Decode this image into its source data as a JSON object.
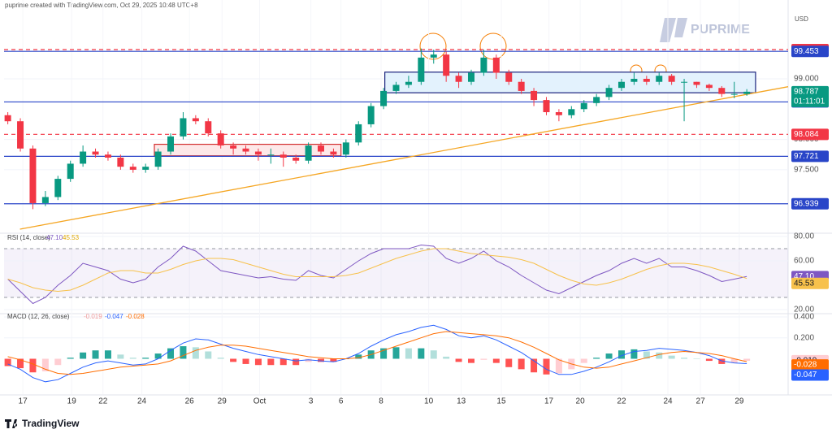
{
  "chart_data": [
    {
      "type": "candlestick",
      "title": "puprime created with TradingView.com, Oct 29, 2025 10:48 UTC+8",
      "currency": "USD",
      "watermark": "PUPRIME",
      "footer": "TradingView",
      "countdown": "01:11:01",
      "xlim": [
        -0.3,
        62.3
      ],
      "xticks": [
        {
          "value": 1.2,
          "label": "17"
        },
        {
          "value": 5.1,
          "label": "19"
        },
        {
          "value": 7.6,
          "label": "22"
        },
        {
          "value": 10.7,
          "label": "24"
        },
        {
          "value": 14.5,
          "label": "26"
        },
        {
          "value": 17.1,
          "label": "29"
        },
        {
          "value": 20.1,
          "label": "Oct"
        },
        {
          "value": 24.2,
          "label": "3"
        },
        {
          "value": 26.6,
          "label": "6"
        },
        {
          "value": 29.8,
          "label": "8"
        },
        {
          "value": 33.6,
          "label": "10"
        },
        {
          "value": 36.2,
          "label": "13"
        },
        {
          "value": 39.4,
          "label": "15"
        },
        {
          "value": 43.2,
          "label": "17"
        },
        {
          "value": 45.7,
          "label": "20"
        },
        {
          "value": 49.0,
          "label": "22"
        },
        {
          "value": 52.7,
          "label": "24"
        },
        {
          "value": 55.3,
          "label": "27"
        },
        {
          "value": 58.4,
          "label": "29"
        }
      ],
      "ylim": [
        96.48,
        100.3
      ],
      "yticks": [
        {
          "value": 97.5,
          "label": "97.500"
        },
        {
          "value": 98.0,
          "label": "98.000"
        },
        {
          "value": 99.0,
          "label": "99.000"
        }
      ],
      "up_color": "#089981",
      "down_color": "#f23645",
      "open": [
        98.4,
        98.3,
        97.85,
        96.95,
        97.05,
        97.35,
        97.6,
        97.8,
        97.75,
        97.7,
        97.55,
        97.5,
        97.55,
        97.8,
        98.05,
        98.35,
        98.3,
        98.1,
        97.9,
        97.85,
        97.8,
        97.75,
        97.75,
        97.7,
        97.65,
        97.9,
        97.8,
        97.75,
        97.95,
        98.25,
        98.55,
        98.8,
        98.9,
        98.95,
        99.35,
        99.4,
        99.05,
        98.95,
        99.1,
        99.35,
        99.1,
        98.95,
        98.8,
        98.65,
        98.45,
        98.4,
        98.5,
        98.6,
        98.7,
        98.85,
        98.95,
        99.0,
        98.95,
        99.05,
        98.95,
        98.95,
        98.9,
        98.85,
        98.75,
        98.75
      ],
      "high": [
        98.45,
        98.35,
        97.9,
        97.15,
        97.4,
        97.65,
        97.9,
        97.85,
        97.8,
        97.75,
        97.6,
        97.6,
        97.85,
        98.1,
        98.45,
        98.4,
        98.35,
        98.15,
        97.95,
        97.9,
        97.85,
        97.85,
        97.8,
        97.75,
        97.95,
        97.95,
        97.85,
        98.0,
        98.3,
        98.6,
        98.85,
        98.95,
        99.05,
        99.5,
        99.48,
        99.45,
        99.1,
        99.15,
        99.48,
        99.4,
        99.15,
        99.0,
        98.85,
        98.7,
        98.5,
        98.55,
        98.65,
        98.75,
        98.9,
        99.0,
        99.1,
        99.05,
        99.1,
        99.08,
        99.0,
        98.95,
        98.92,
        98.88,
        98.95,
        98.83
      ],
      "low": [
        98.25,
        97.8,
        96.85,
        96.9,
        97.0,
        97.3,
        97.55,
        97.7,
        97.65,
        97.5,
        97.45,
        97.45,
        97.5,
        97.75,
        98.0,
        98.25,
        98.05,
        97.85,
        97.75,
        97.75,
        97.65,
        97.6,
        97.55,
        97.6,
        97.6,
        97.75,
        97.7,
        97.7,
        97.9,
        98.2,
        98.5,
        98.75,
        98.85,
        98.9,
        99.25,
        98.95,
        98.85,
        98.9,
        99.05,
        99.0,
        98.9,
        98.75,
        98.55,
        98.4,
        98.3,
        98.35,
        98.45,
        98.55,
        98.65,
        98.8,
        98.9,
        98.9,
        98.9,
        98.9,
        98.3,
        98.85,
        98.8,
        98.7,
        98.68,
        98.72
      ],
      "close": [
        98.3,
        97.85,
        96.95,
        97.05,
        97.35,
        97.6,
        97.8,
        97.75,
        97.7,
        97.55,
        97.5,
        97.55,
        97.8,
        98.05,
        98.35,
        98.3,
        98.1,
        97.9,
        97.85,
        97.8,
        97.75,
        97.75,
        97.7,
        97.65,
        97.9,
        97.8,
        97.75,
        97.95,
        98.25,
        98.55,
        98.8,
        98.9,
        98.95,
        99.35,
        99.4,
        99.05,
        98.95,
        99.1,
        99.35,
        99.1,
        98.95,
        98.8,
        98.65,
        98.45,
        98.4,
        98.5,
        98.6,
        98.7,
        98.85,
        98.95,
        99.0,
        98.95,
        99.05,
        98.95,
        98.95,
        98.9,
        98.85,
        98.75,
        98.75,
        98.787
      ],
      "levels": [
        {
          "value": 99.482,
          "color": "#f23645",
          "style": "dashed"
        },
        {
          "value": 99.453,
          "color": "#2945c8",
          "style": "solid"
        },
        {
          "value": 98.619,
          "color": "#2945c8",
          "style": "solid"
        },
        {
          "value": 98.084,
          "color": "#f23645",
          "style": "dashed"
        },
        {
          "value": 97.721,
          "color": "#2945c8",
          "style": "solid"
        },
        {
          "value": 96.939,
          "color": "#2945c8",
          "style": "solid"
        }
      ],
      "boxes": [
        {
          "x": [
            30.1,
            59.7
          ],
          "y": [
            98.77,
            99.11
          ],
          "color": "#1a237e",
          "fill": "#e3f2fd"
        },
        {
          "x": [
            11.7,
            26.6
          ],
          "y": [
            97.73,
            97.92
          ],
          "color": "#d32f2f",
          "fill": "#fde8e8"
        }
      ],
      "trendline": {
        "x": [
          0.97,
          62.3
        ],
        "y": [
          96.52,
          98.87
        ],
        "color": "#f5a623"
      }
    },
    {
      "type": "line",
      "title": "RSI (14, close)",
      "ylim": [
        17.33,
        80.67
      ],
      "yticks": [
        {
          "value": 20,
          "label": "20.00"
        },
        {
          "value": 60,
          "label": "60.00"
        },
        {
          "value": 80,
          "label": "80.00"
        }
      ],
      "band": [
        30,
        70
      ],
      "series": [
        {
          "color": "#7e57c2",
          "last_label": "47.10",
          "values": [
            45,
            35,
            25,
            30,
            40,
            48,
            58,
            55,
            52,
            45,
            42,
            45,
            55,
            62,
            72,
            68,
            60,
            52,
            50,
            48,
            46,
            47,
            45,
            44,
            52,
            48,
            46,
            53,
            60,
            66,
            70,
            70,
            70,
            73,
            72,
            62,
            58,
            62,
            68,
            60,
            55,
            48,
            42,
            36,
            33,
            38,
            43,
            48,
            52,
            58,
            62,
            58,
            62,
            55,
            55,
            52,
            48,
            43,
            45,
            47.1
          ]
        },
        {
          "color": "#f7c14b",
          "values": [
            45,
            42,
            38,
            36,
            35,
            36,
            40,
            45,
            50,
            52,
            52,
            50,
            50,
            53,
            57,
            60,
            62,
            62,
            61,
            58,
            55,
            52,
            49,
            47,
            47,
            47,
            47,
            48,
            50,
            54,
            58,
            62,
            65,
            68,
            70,
            70,
            68,
            66,
            65,
            64,
            63,
            61,
            58,
            53,
            48,
            44,
            41,
            40,
            42,
            45,
            49,
            53,
            56,
            58,
            58,
            57,
            55,
            52,
            49,
            45.53
          ]
        }
      ]
    },
    {
      "type": "macd",
      "title": "MACD (12, 26, close)",
      "ylim": [
        -0.338,
        0.431
      ],
      "yticks": [
        {
          "value": 0.2,
          "label": "0.200"
        },
        {
          "value": 0.4,
          "label": "0.400"
        }
      ],
      "histogram": [
        -0.07,
        -0.09,
        -0.13,
        -0.12,
        -0.06,
        0.01,
        0.06,
        0.08,
        0.08,
        0.04,
        0.01,
        0.01,
        0.05,
        0.1,
        0.12,
        0.11,
        0.07,
        0.01,
        -0.03,
        -0.05,
        -0.06,
        -0.06,
        -0.06,
        -0.06,
        -0.03,
        -0.03,
        -0.03,
        0.0,
        0.04,
        0.08,
        0.1,
        0.11,
        0.1,
        0.1,
        0.08,
        0.02,
        -0.03,
        -0.04,
        -0.01,
        -0.04,
        -0.08,
        -0.1,
        -0.13,
        -0.15,
        -0.14,
        -0.1,
        -0.04,
        0.01,
        0.05,
        0.08,
        0.09,
        0.07,
        0.06,
        0.03,
        0.01,
        0.0,
        -0.02,
        -0.05,
        -0.04,
        -0.019
      ],
      "series": [
        {
          "color": "#2962ff",
          "values": [
            -0.05,
            -0.1,
            -0.18,
            -0.22,
            -0.2,
            -0.14,
            -0.08,
            -0.04,
            -0.02,
            -0.04,
            -0.06,
            -0.05,
            0.0,
            0.08,
            0.15,
            0.19,
            0.18,
            0.14,
            0.1,
            0.07,
            0.04,
            0.02,
            0.0,
            -0.02,
            -0.01,
            -0.02,
            -0.03,
            0.0,
            0.05,
            0.12,
            0.18,
            0.23,
            0.26,
            0.3,
            0.32,
            0.28,
            0.22,
            0.2,
            0.22,
            0.18,
            0.12,
            0.06,
            -0.02,
            -0.1,
            -0.15,
            -0.15,
            -0.12,
            -0.08,
            -0.03,
            0.03,
            0.07,
            0.08,
            0.1,
            0.09,
            0.08,
            0.06,
            0.03,
            -0.02,
            -0.04,
            -0.047
          ]
        },
        {
          "color": "#ff6d00",
          "values": [
            0.02,
            -0.01,
            -0.05,
            -0.1,
            -0.14,
            -0.15,
            -0.14,
            -0.12,
            -0.1,
            -0.08,
            -0.07,
            -0.06,
            -0.05,
            -0.02,
            0.03,
            0.08,
            0.11,
            0.13,
            0.13,
            0.12,
            0.1,
            0.08,
            0.06,
            0.04,
            0.02,
            0.01,
            0.0,
            0.0,
            0.01,
            0.04,
            0.08,
            0.12,
            0.16,
            0.2,
            0.24,
            0.26,
            0.25,
            0.24,
            0.23,
            0.22,
            0.2,
            0.16,
            0.11,
            0.05,
            -0.01,
            -0.05,
            -0.08,
            -0.09,
            -0.08,
            -0.05,
            -0.02,
            0.01,
            0.04,
            0.06,
            0.07,
            0.06,
            0.05,
            0.03,
            0.0,
            -0.028
          ]
        }
      ]
    }
  ]
}
